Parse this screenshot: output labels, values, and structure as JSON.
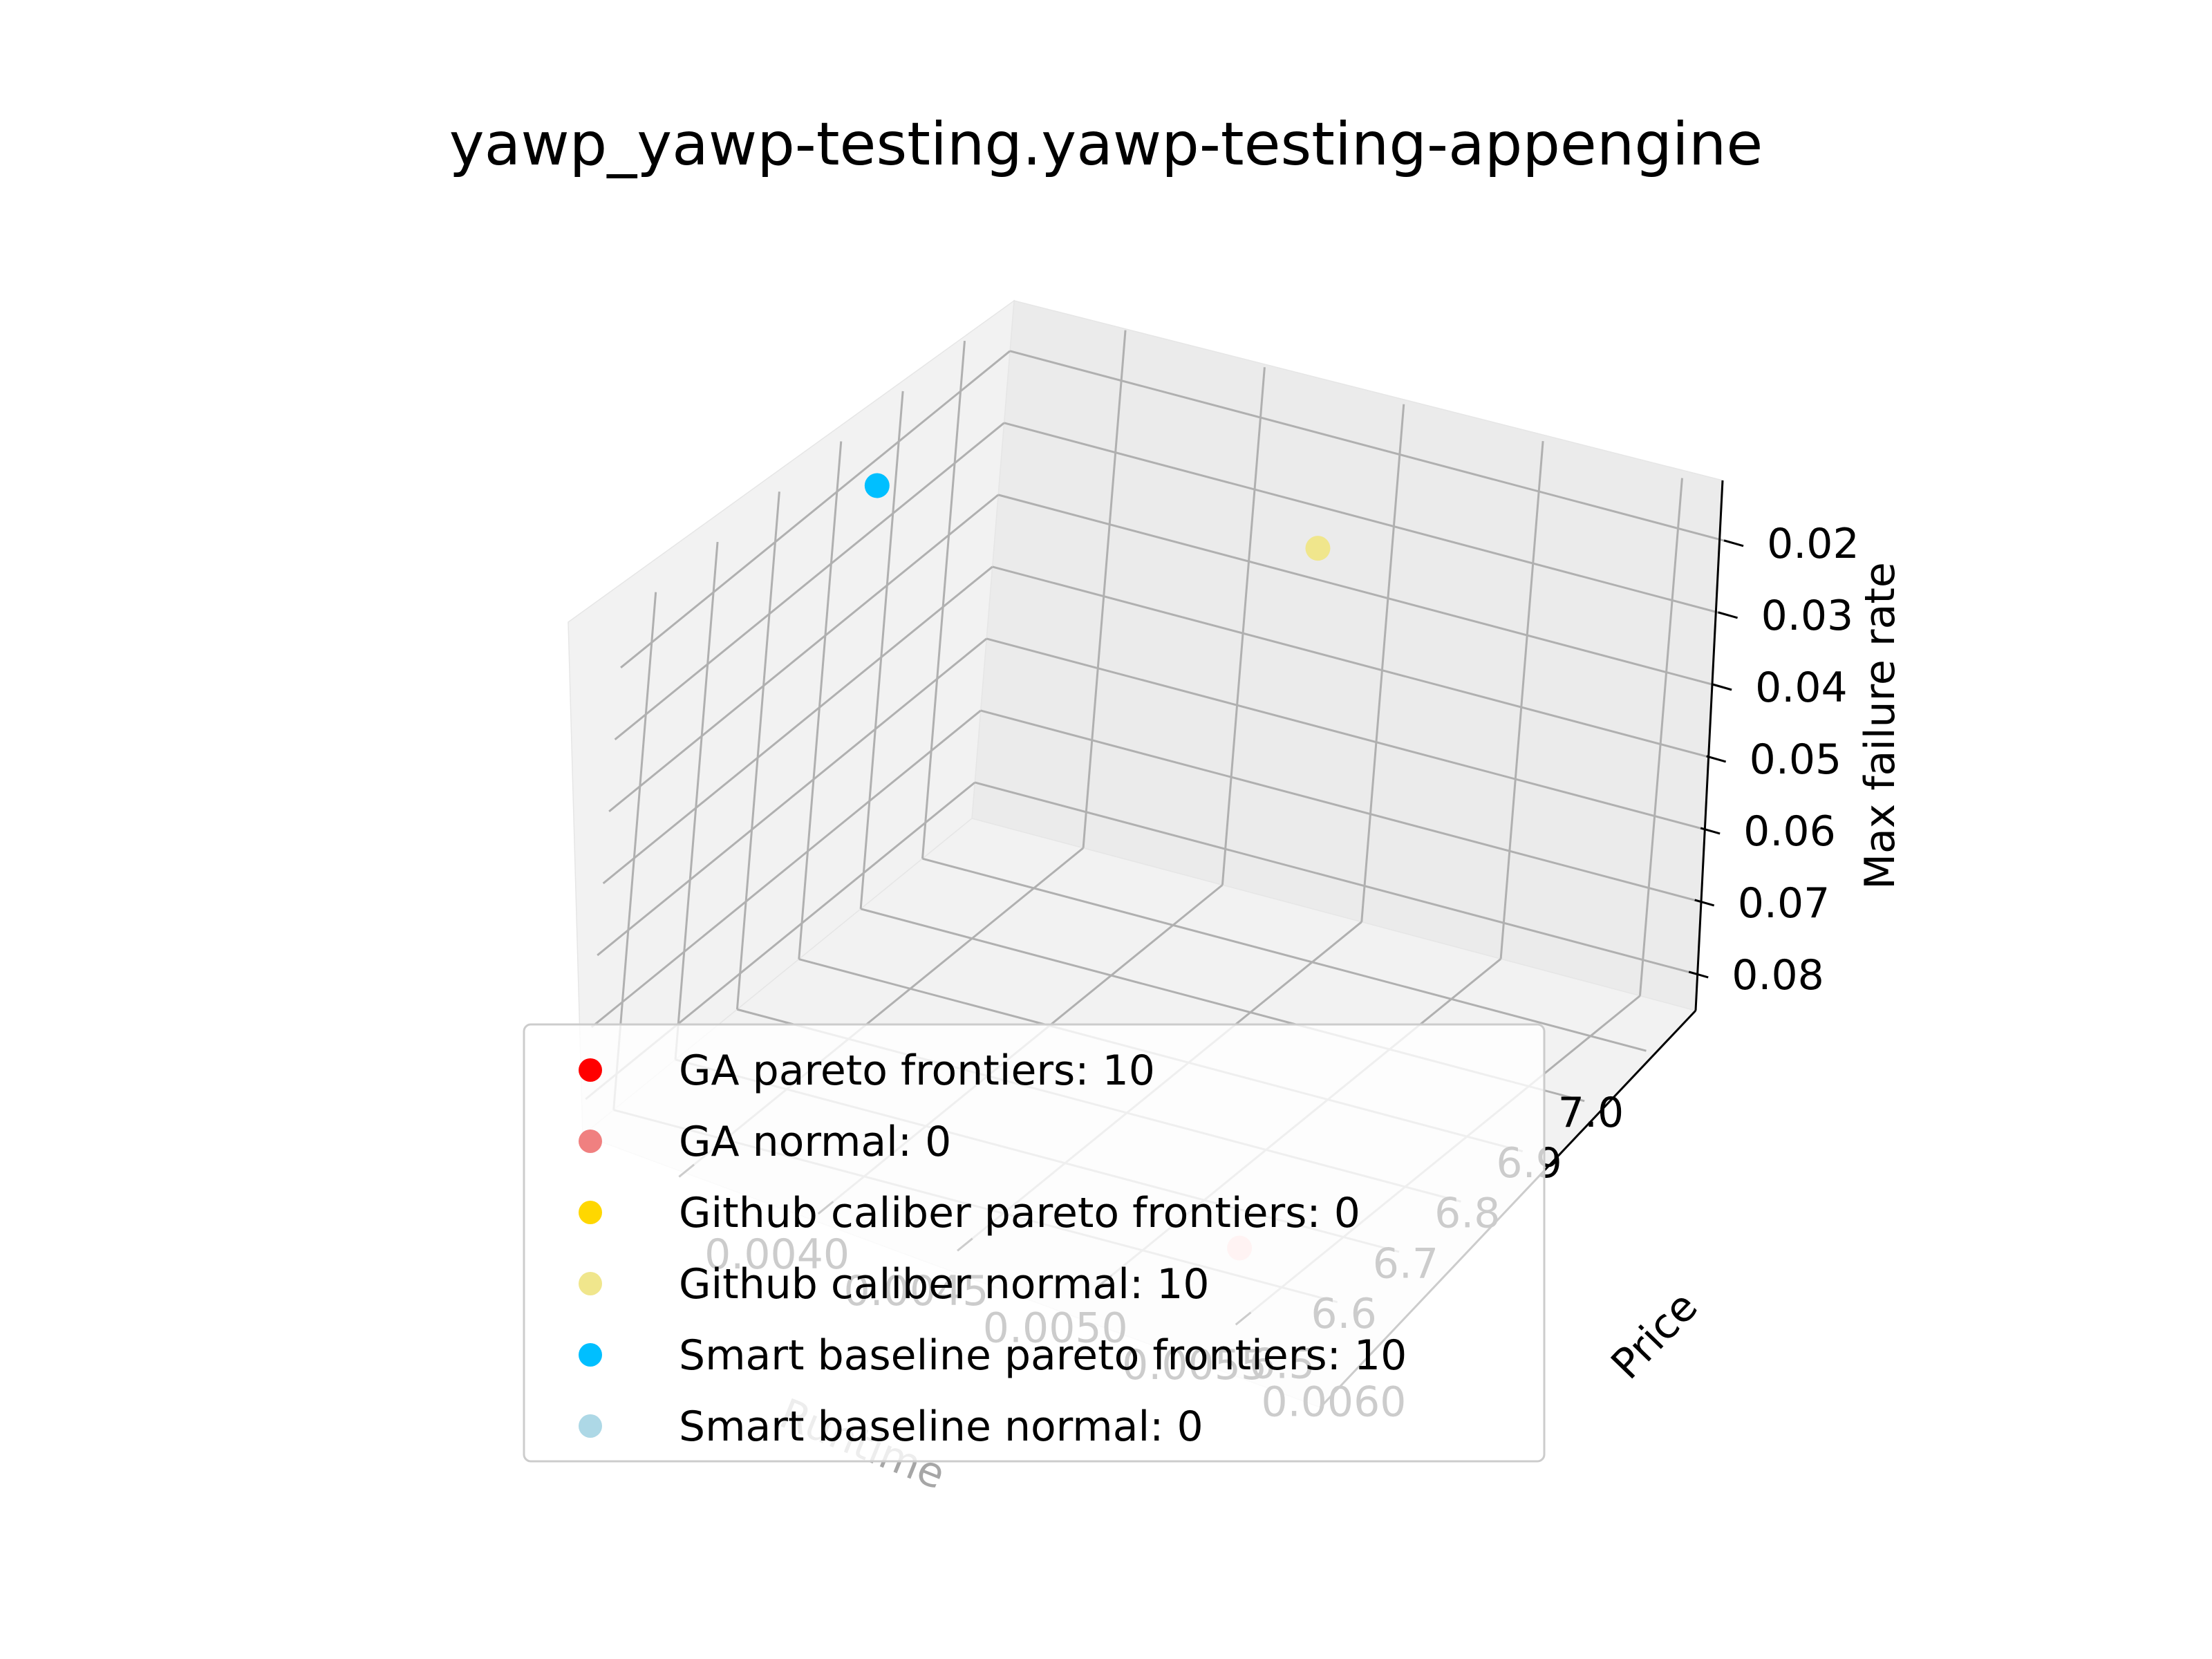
{
  "chart_data": {
    "type": "scatter",
    "projection": "3d",
    "title": "yawp_yawp-testing.yawp-testing-appengine",
    "xlabel": "Runtime",
    "ylabel": "Price",
    "zlabel": "Max failure rate",
    "x_ticks": [
      "7.0",
      "6.9",
      "6.8",
      "6.7",
      "6.6",
      "6.5"
    ],
    "y_ticks": [
      "0.0040",
      "0.0045",
      "0.0050",
      "0.0055",
      "0.0060"
    ],
    "z_ticks": [
      "0.02",
      "0.03",
      "0.04",
      "0.05",
      "0.06",
      "0.07",
      "0.08"
    ],
    "xlim": [
      6.45,
      7.08
    ],
    "ylim": [
      0.0036,
      0.0062
    ],
    "zlim": [
      0.013,
      0.085
    ],
    "z_inverted": true,
    "grid": true,
    "legend_position": "lower-center",
    "series": [
      {
        "label": "GA pareto frontiers: 10",
        "color": "#ff0000",
        "points": []
      },
      {
        "label": "GA normal: 0",
        "color": "#f08080",
        "points": []
      },
      {
        "label": "Github caliber pareto frontiers: 0",
        "color": "#ffd700",
        "points": []
      },
      {
        "label": "Github caliber normal: 10",
        "color": "#f0e68c",
        "points": [
          {
            "x": 7.05,
            "y": 0.0048,
            "z": 0.033
          }
        ]
      },
      {
        "label": "Smart baseline pareto frontiers: 10",
        "color": "#00bfff",
        "points": [
          {
            "x": 6.77,
            "y": 0.0038,
            "z": 0.015
          }
        ]
      },
      {
        "label": "Smart baseline normal: 0",
        "color": "#add8e6",
        "points": []
      }
    ],
    "extra_marks": [
      {
        "color": "#ffc0c0",
        "x": 6.52,
        "y": 0.0058,
        "z": 0.083
      }
    ]
  }
}
